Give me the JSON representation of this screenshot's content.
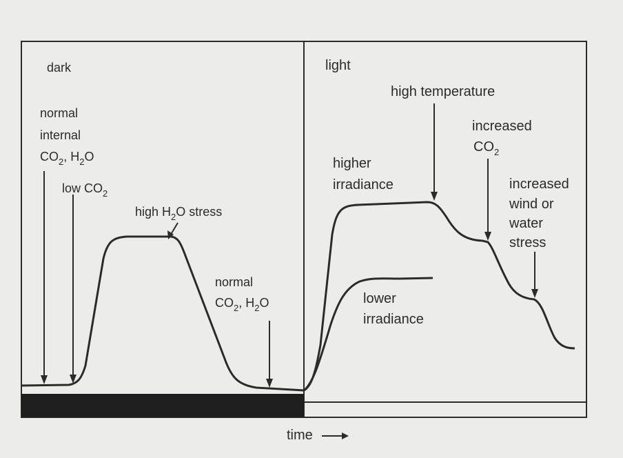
{
  "panels": {
    "dark": "dark",
    "light": "light"
  },
  "xaxis": {
    "label": "time",
    "arrow": "⟶"
  },
  "annotations": {
    "normal_internal": {
      "line1": "normal",
      "line2": "internal",
      "co2": "CO",
      "co2_sub": "2",
      "sep": ", H",
      "h2o_sub": "2",
      "o": "O"
    },
    "low_co2": {
      "text": "low CO",
      "sub": "2"
    },
    "high_h2o_stress": {
      "pre": "high H",
      "sub": "2",
      "post": "O stress"
    },
    "normal_co2_h2o": {
      "line1": "normal",
      "co2": "CO",
      "co2_sub": "2",
      "sep": ", H",
      "h2o_sub": "2",
      "o": "O"
    },
    "higher_irradiance": {
      "line1": "higher",
      "line2": "irradiance"
    },
    "lower_irradiance": {
      "line1": "lower",
      "line2": "irradiance"
    },
    "high_temperature": {
      "text": "high temperature"
    },
    "increased_co2": {
      "line1": "increased",
      "co2": "CO",
      "sub": "2"
    },
    "increased_wind": {
      "line1": "increased",
      "line2": "wind or",
      "line3": "water",
      "line4": "stress"
    }
  },
  "colors": {
    "ink": "#2b2b2b",
    "paper": "#ececea",
    "dark_bar": "#1e1e1e"
  }
}
